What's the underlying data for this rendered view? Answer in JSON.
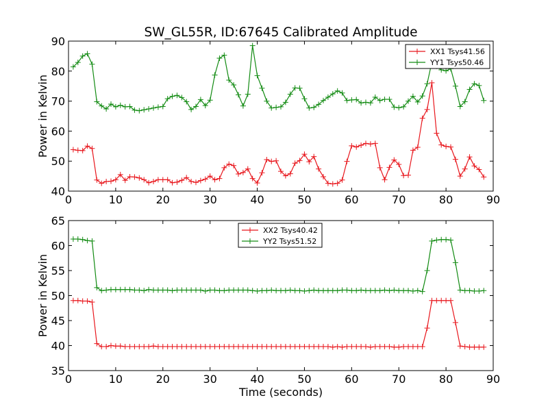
{
  "title": "SW_GL55R, ID:67645 Calibrated Amplitude",
  "chart_data": [
    {
      "type": "line",
      "xlabel": "",
      "ylabel": "Power in Kelvin",
      "xlim": [
        0,
        90
      ],
      "ylim": [
        40,
        90
      ],
      "xticks": [
        "0",
        "10",
        "20",
        "30",
        "40",
        "50",
        "60",
        "70",
        "80",
        "90"
      ],
      "yticks": [
        "40",
        "50",
        "60",
        "70",
        "80",
        "90"
      ],
      "legend_position": "top-right",
      "grid": false,
      "x": [
        1,
        2,
        3,
        4,
        5,
        6,
        7,
        8,
        9,
        10,
        11,
        12,
        13,
        14,
        15,
        16,
        17,
        18,
        19,
        20,
        21,
        22,
        23,
        24,
        25,
        26,
        27,
        28,
        29,
        30,
        31,
        32,
        33,
        34,
        35,
        36,
        37,
        38,
        39,
        40,
        41,
        42,
        43,
        44,
        45,
        46,
        47,
        48,
        49,
        50,
        51,
        52,
        53,
        54,
        55,
        56,
        57,
        58,
        59,
        60,
        61,
        62,
        63,
        64,
        65,
        66,
        67,
        68,
        69,
        70,
        71,
        72,
        73,
        74,
        75,
        76,
        77,
        78,
        79,
        80,
        81,
        82,
        83,
        84,
        85,
        86,
        87,
        88
      ],
      "series": [
        {
          "name": "XX1 Tsys41.56",
          "color": "#e8151b",
          "values": [
            53.8,
            53.6,
            53.5,
            55.0,
            54.2,
            43.7,
            42.6,
            43.2,
            43.3,
            43.8,
            45.5,
            43.6,
            44.8,
            44.7,
            44.4,
            43.8,
            42.8,
            43.2,
            43.8,
            43.8,
            43.8,
            42.8,
            43.0,
            43.6,
            44.5,
            43.2,
            42.9,
            43.5,
            44.0,
            45.0,
            43.8,
            44.2,
            47.8,
            49.0,
            48.5,
            45.7,
            46.2,
            47.4,
            44.2,
            42.7,
            46.1,
            50.5,
            49.9,
            50.1,
            46.6,
            45.1,
            45.8,
            49.3,
            50.2,
            52.3,
            49.8,
            51.5,
            47.4,
            44.8,
            42.6,
            42.4,
            42.6,
            43.7,
            49.9,
            55.1,
            54.7,
            55.3,
            55.9,
            55.7,
            55.9,
            47.8,
            43.8,
            47.9,
            50.4,
            48.9,
            45.2,
            45.3,
            53.6,
            54.6,
            64.3,
            67.2,
            76.1,
            59.3,
            55.4,
            54.9,
            54.7,
            50.6,
            45.0,
            47.4,
            51.4,
            48.4,
            47.2,
            44.7
          ]
        },
        {
          "name": "YY1 Tsys50.46",
          "color": "#118a11",
          "values": [
            81.4,
            82.9,
            85.0,
            85.8,
            82.3,
            69.8,
            68.4,
            67.4,
            69.0,
            68.1,
            68.6,
            68.1,
            68.2,
            67.0,
            66.8,
            67.1,
            67.4,
            67.7,
            68.0,
            68.2,
            70.8,
            71.6,
            71.9,
            71.2,
            69.8,
            67.2,
            68.2,
            70.5,
            68.5,
            70.3,
            78.7,
            84.3,
            85.3,
            77.0,
            75.4,
            72.1,
            68.4,
            72.3,
            88.5,
            78.5,
            74.3,
            70.0,
            67.7,
            67.9,
            68.1,
            69.6,
            72.3,
            74.4,
            74.3,
            70.8,
            67.7,
            67.9,
            68.9,
            70.2,
            71.3,
            72.4,
            73.4,
            72.7,
            70.2,
            70.4,
            70.5,
            69.4,
            69.6,
            69.4,
            71.3,
            70.2,
            70.6,
            70.6,
            68.0,
            67.8,
            68.1,
            70.0,
            71.6,
            69.7,
            71.7,
            75.8,
            83.0,
            81.6,
            80.4,
            80.1,
            80.8,
            75.0,
            68.2,
            69.8,
            73.9,
            75.8,
            75.2,
            70.2
          ]
        }
      ]
    },
    {
      "type": "line",
      "xlabel": "Time (seconds)",
      "ylabel": "Power in Kelvin",
      "xlim": [
        0,
        90
      ],
      "ylim": [
        35,
        65
      ],
      "xticks": [
        "0",
        "10",
        "20",
        "30",
        "40",
        "50",
        "60",
        "70",
        "80",
        "90"
      ],
      "yticks": [
        "35",
        "40",
        "45",
        "50",
        "55",
        "60",
        "65"
      ],
      "legend_position": "top-center",
      "grid": false,
      "x": [
        1,
        2,
        3,
        4,
        5,
        6,
        7,
        8,
        9,
        10,
        11,
        12,
        13,
        14,
        15,
        16,
        17,
        18,
        19,
        20,
        21,
        22,
        23,
        24,
        25,
        26,
        27,
        28,
        29,
        30,
        31,
        32,
        33,
        34,
        35,
        36,
        37,
        38,
        39,
        40,
        41,
        42,
        43,
        44,
        45,
        46,
        47,
        48,
        49,
        50,
        51,
        52,
        53,
        54,
        55,
        56,
        57,
        58,
        59,
        60,
        61,
        62,
        63,
        64,
        65,
        66,
        67,
        68,
        69,
        70,
        71,
        72,
        73,
        74,
        75,
        76,
        77,
        78,
        79,
        80,
        81,
        82,
        83,
        84,
        85,
        86,
        87,
        88
      ],
      "series": [
        {
          "name": "XX2 Tsys40.42",
          "color": "#e8151b",
          "values": [
            49.0,
            49.0,
            48.9,
            48.9,
            48.7,
            40.4,
            39.8,
            39.8,
            40.0,
            39.9,
            39.9,
            39.8,
            39.8,
            39.8,
            39.8,
            39.8,
            39.8,
            39.9,
            39.8,
            39.8,
            39.8,
            39.8,
            39.8,
            39.8,
            39.8,
            39.8,
            39.8,
            39.8,
            39.8,
            39.8,
            39.8,
            39.8,
            39.8,
            39.8,
            39.8,
            39.8,
            39.8,
            39.8,
            39.8,
            39.8,
            39.8,
            39.8,
            39.8,
            39.8,
            39.8,
            39.8,
            39.8,
            39.8,
            39.8,
            39.8,
            39.8,
            39.8,
            39.8,
            39.8,
            39.8,
            39.7,
            39.8,
            39.7,
            39.8,
            39.8,
            39.8,
            39.8,
            39.8,
            39.7,
            39.8,
            39.8,
            39.8,
            39.8,
            39.7,
            39.7,
            39.8,
            39.8,
            39.8,
            39.8,
            39.8,
            43.5,
            49.0,
            49.0,
            49.0,
            49.0,
            49.0,
            44.6,
            39.9,
            39.8,
            39.7,
            39.7,
            39.7,
            39.7
          ]
        },
        {
          "name": "YY2 Tsys51.52",
          "color": "#118a11",
          "values": [
            61.3,
            61.3,
            61.2,
            61.0,
            60.9,
            51.6,
            51.0,
            51.1,
            51.2,
            51.2,
            51.2,
            51.2,
            51.2,
            51.1,
            51.1,
            51.0,
            51.2,
            51.1,
            51.1,
            51.1,
            51.1,
            51.0,
            51.1,
            51.1,
            51.1,
            51.1,
            51.1,
            51.1,
            50.9,
            51.1,
            51.1,
            51.0,
            51.0,
            51.1,
            51.1,
            51.1,
            51.1,
            51.1,
            51.0,
            50.9,
            51.0,
            51.0,
            51.1,
            51.0,
            51.0,
            51.0,
            51.1,
            51.0,
            51.0,
            50.9,
            51.0,
            51.1,
            51.0,
            51.0,
            51.0,
            51.0,
            51.0,
            51.1,
            51.1,
            51.0,
            51.0,
            51.1,
            51.0,
            51.0,
            51.0,
            51.0,
            51.1,
            51.0,
            51.1,
            51.0,
            51.0,
            51.0,
            50.9,
            51.0,
            50.8,
            55.0,
            60.9,
            61.1,
            61.2,
            61.2,
            61.1,
            56.6,
            51.1,
            51.0,
            51.0,
            50.9,
            50.9,
            51.0
          ]
        }
      ]
    }
  ]
}
